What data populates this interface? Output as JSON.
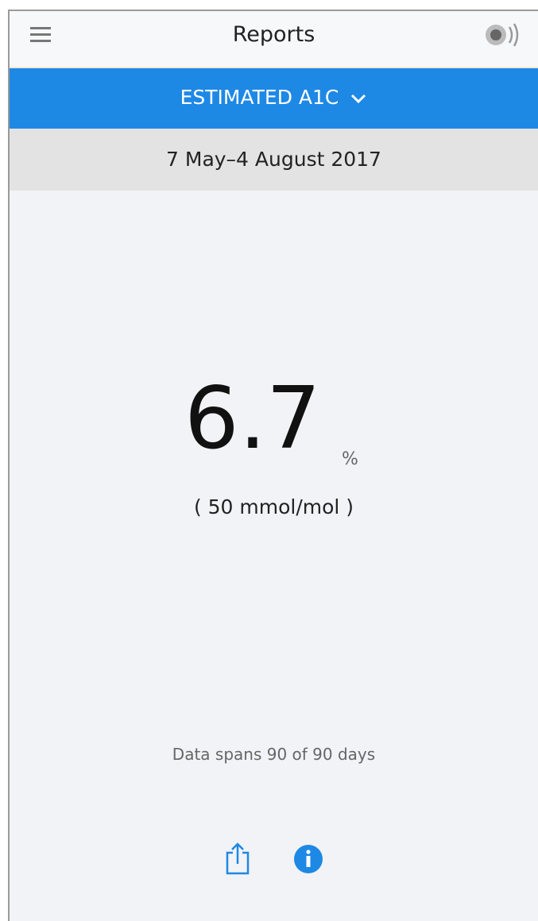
{
  "header": {
    "title": "Reports"
  },
  "report_selector": {
    "label": "ESTIMATED A1C"
  },
  "date_range": "7 May–4 August 2017",
  "result": {
    "value": "6.7",
    "unit": "%",
    "alt_value": "( 50 mmol/mol )"
  },
  "footer_note": "Data spans 90 of 90 days"
}
